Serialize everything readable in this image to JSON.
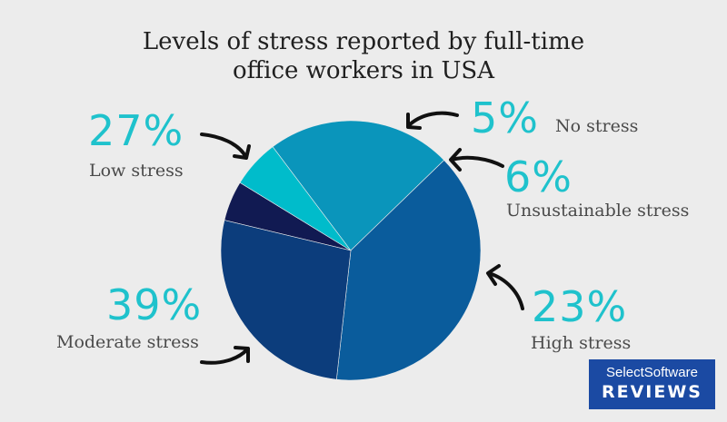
{
  "chart_data": {
    "type": "pie",
    "title_lines": [
      "Levels of stress reported by full-time",
      "office workers in USA"
    ],
    "slices": [
      {
        "label": "No stress",
        "value": 5,
        "value_label": "5%",
        "color": "#111a52"
      },
      {
        "label": "Unsustainable stress",
        "value": 6,
        "value_label": "6%",
        "color": "#00bccb"
      },
      {
        "label": "High stress",
        "value": 23,
        "value_label": "23%",
        "color": "#0a95bb"
      },
      {
        "label": "Moderate stress",
        "value": 39,
        "value_label": "39%",
        "color": "#0a5c9c"
      },
      {
        "label": "Low stress",
        "value": 27,
        "value_label": "27%",
        "color": "#0c3d7c"
      }
    ]
  },
  "logo": {
    "line1": "SelectSoftware",
    "line2": "REVIEWS"
  },
  "colors": {
    "background": "#ececec",
    "accent": "#1fc2cc",
    "logo_bg": "#1b4aa3"
  }
}
